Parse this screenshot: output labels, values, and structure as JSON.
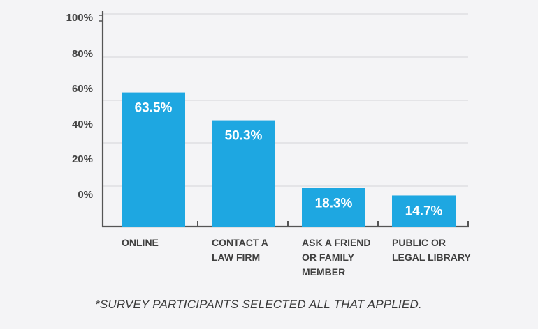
{
  "chart_data": {
    "type": "bar",
    "categories": [
      [
        "ONLINE"
      ],
      [
        "CONTACT A",
        "LAW FIRM"
      ],
      [
        "ASK A FRIEND",
        "OR FAMILY",
        "MEMBER"
      ],
      [
        "PUBLIC OR",
        "LEGAL LIBRARY"
      ]
    ],
    "values": [
      63.5,
      50.3,
      18.3,
      14.7
    ],
    "data_labels": [
      "63.5%",
      "50.3%",
      "18.3%",
      "14.7%"
    ],
    "tick_labels": [
      "100%",
      "80%",
      "60%",
      "40%",
      "20%",
      "0%"
    ],
    "bar_color": "#1ea7e1",
    "grid": true,
    "title": "",
    "xlabel": "",
    "ylabel": ""
  },
  "footnote": "*SURVEY PARTICIPANTS SELECTED ALL THAT APPLIED."
}
